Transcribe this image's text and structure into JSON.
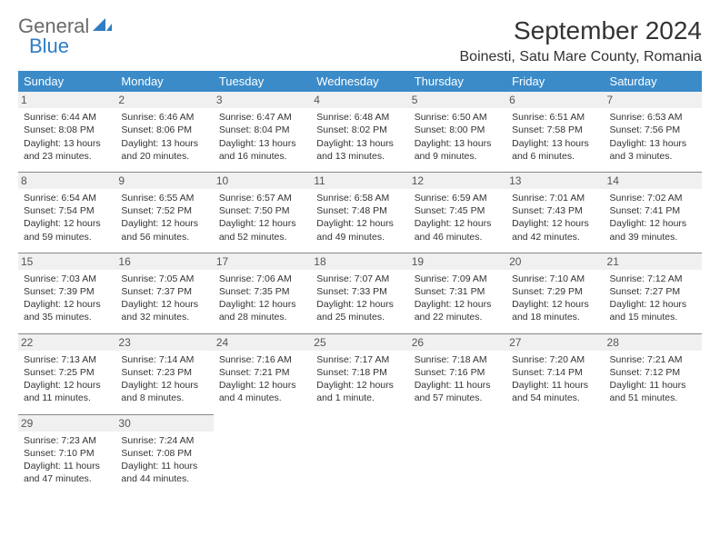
{
  "logo": {
    "part1": "General",
    "part2": "Blue"
  },
  "title": "September 2024",
  "location": "Boinesti, Satu Mare County, Romania",
  "colors": {
    "header_bg": "#3b8bc9",
    "header_text": "#ffffff",
    "logo_gray": "#6a6a6a",
    "logo_blue": "#2f7cc4",
    "daynum_bg": "#f0f0f0",
    "border": "#888888",
    "text": "#333333"
  },
  "day_headers": [
    "Sunday",
    "Monday",
    "Tuesday",
    "Wednesday",
    "Thursday",
    "Friday",
    "Saturday"
  ],
  "weeks": [
    [
      {
        "n": "1",
        "sr": "Sunrise: 6:44 AM",
        "ss": "Sunset: 8:08 PM",
        "dl": "Daylight: 13 hours and 23 minutes."
      },
      {
        "n": "2",
        "sr": "Sunrise: 6:46 AM",
        "ss": "Sunset: 8:06 PM",
        "dl": "Daylight: 13 hours and 20 minutes."
      },
      {
        "n": "3",
        "sr": "Sunrise: 6:47 AM",
        "ss": "Sunset: 8:04 PM",
        "dl": "Daylight: 13 hours and 16 minutes."
      },
      {
        "n": "4",
        "sr": "Sunrise: 6:48 AM",
        "ss": "Sunset: 8:02 PM",
        "dl": "Daylight: 13 hours and 13 minutes."
      },
      {
        "n": "5",
        "sr": "Sunrise: 6:50 AM",
        "ss": "Sunset: 8:00 PM",
        "dl": "Daylight: 13 hours and 9 minutes."
      },
      {
        "n": "6",
        "sr": "Sunrise: 6:51 AM",
        "ss": "Sunset: 7:58 PM",
        "dl": "Daylight: 13 hours and 6 minutes."
      },
      {
        "n": "7",
        "sr": "Sunrise: 6:53 AM",
        "ss": "Sunset: 7:56 PM",
        "dl": "Daylight: 13 hours and 3 minutes."
      }
    ],
    [
      {
        "n": "8",
        "sr": "Sunrise: 6:54 AM",
        "ss": "Sunset: 7:54 PM",
        "dl": "Daylight: 12 hours and 59 minutes."
      },
      {
        "n": "9",
        "sr": "Sunrise: 6:55 AM",
        "ss": "Sunset: 7:52 PM",
        "dl": "Daylight: 12 hours and 56 minutes."
      },
      {
        "n": "10",
        "sr": "Sunrise: 6:57 AM",
        "ss": "Sunset: 7:50 PM",
        "dl": "Daylight: 12 hours and 52 minutes."
      },
      {
        "n": "11",
        "sr": "Sunrise: 6:58 AM",
        "ss": "Sunset: 7:48 PM",
        "dl": "Daylight: 12 hours and 49 minutes."
      },
      {
        "n": "12",
        "sr": "Sunrise: 6:59 AM",
        "ss": "Sunset: 7:45 PM",
        "dl": "Daylight: 12 hours and 46 minutes."
      },
      {
        "n": "13",
        "sr": "Sunrise: 7:01 AM",
        "ss": "Sunset: 7:43 PM",
        "dl": "Daylight: 12 hours and 42 minutes."
      },
      {
        "n": "14",
        "sr": "Sunrise: 7:02 AM",
        "ss": "Sunset: 7:41 PM",
        "dl": "Daylight: 12 hours and 39 minutes."
      }
    ],
    [
      {
        "n": "15",
        "sr": "Sunrise: 7:03 AM",
        "ss": "Sunset: 7:39 PM",
        "dl": "Daylight: 12 hours and 35 minutes."
      },
      {
        "n": "16",
        "sr": "Sunrise: 7:05 AM",
        "ss": "Sunset: 7:37 PM",
        "dl": "Daylight: 12 hours and 32 minutes."
      },
      {
        "n": "17",
        "sr": "Sunrise: 7:06 AM",
        "ss": "Sunset: 7:35 PM",
        "dl": "Daylight: 12 hours and 28 minutes."
      },
      {
        "n": "18",
        "sr": "Sunrise: 7:07 AM",
        "ss": "Sunset: 7:33 PM",
        "dl": "Daylight: 12 hours and 25 minutes."
      },
      {
        "n": "19",
        "sr": "Sunrise: 7:09 AM",
        "ss": "Sunset: 7:31 PM",
        "dl": "Daylight: 12 hours and 22 minutes."
      },
      {
        "n": "20",
        "sr": "Sunrise: 7:10 AM",
        "ss": "Sunset: 7:29 PM",
        "dl": "Daylight: 12 hours and 18 minutes."
      },
      {
        "n": "21",
        "sr": "Sunrise: 7:12 AM",
        "ss": "Sunset: 7:27 PM",
        "dl": "Daylight: 12 hours and 15 minutes."
      }
    ],
    [
      {
        "n": "22",
        "sr": "Sunrise: 7:13 AM",
        "ss": "Sunset: 7:25 PM",
        "dl": "Daylight: 12 hours and 11 minutes."
      },
      {
        "n": "23",
        "sr": "Sunrise: 7:14 AM",
        "ss": "Sunset: 7:23 PM",
        "dl": "Daylight: 12 hours and 8 minutes."
      },
      {
        "n": "24",
        "sr": "Sunrise: 7:16 AM",
        "ss": "Sunset: 7:21 PM",
        "dl": "Daylight: 12 hours and 4 minutes."
      },
      {
        "n": "25",
        "sr": "Sunrise: 7:17 AM",
        "ss": "Sunset: 7:18 PM",
        "dl": "Daylight: 12 hours and 1 minute."
      },
      {
        "n": "26",
        "sr": "Sunrise: 7:18 AM",
        "ss": "Sunset: 7:16 PM",
        "dl": "Daylight: 11 hours and 57 minutes."
      },
      {
        "n": "27",
        "sr": "Sunrise: 7:20 AM",
        "ss": "Sunset: 7:14 PM",
        "dl": "Daylight: 11 hours and 54 minutes."
      },
      {
        "n": "28",
        "sr": "Sunrise: 7:21 AM",
        "ss": "Sunset: 7:12 PM",
        "dl": "Daylight: 11 hours and 51 minutes."
      }
    ],
    [
      {
        "n": "29",
        "sr": "Sunrise: 7:23 AM",
        "ss": "Sunset: 7:10 PM",
        "dl": "Daylight: 11 hours and 47 minutes."
      },
      {
        "n": "30",
        "sr": "Sunrise: 7:24 AM",
        "ss": "Sunset: 7:08 PM",
        "dl": "Daylight: 11 hours and 44 minutes."
      },
      null,
      null,
      null,
      null,
      null
    ]
  ]
}
